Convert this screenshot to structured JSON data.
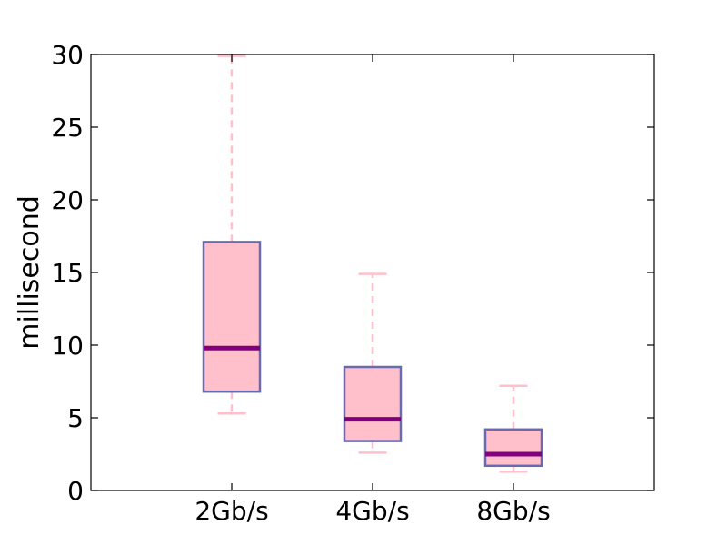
{
  "chart_data": {
    "type": "box",
    "title": "",
    "xlabel": "",
    "ylabel": "millisecond",
    "ylim": [
      0,
      30
    ],
    "yticks": [
      0,
      5,
      10,
      15,
      20,
      25,
      30
    ],
    "ytick_labels": [
      "0",
      "5",
      "10",
      "15",
      "20",
      "25",
      "30"
    ],
    "categories": [
      "2Gb/s",
      "4Gb/s",
      "8Gb/s"
    ],
    "boxes": [
      {
        "category": "2Gb/s",
        "whislo": 5.3,
        "q1": 6.8,
        "median": 9.8,
        "q3": 17.1,
        "whishi": 29.9
      },
      {
        "category": "4Gb/s",
        "whislo": 2.6,
        "q1": 3.4,
        "median": 4.9,
        "q3": 8.5,
        "whishi": 14.9
      },
      {
        "category": "8Gb/s",
        "whislo": 1.3,
        "q1": 1.7,
        "median": 2.5,
        "q3": 4.2,
        "whishi": 7.2
      }
    ],
    "grid": false,
    "legend": "none",
    "colors": {
      "box_fill": "#ffc0cb",
      "box_edge": "#6a6ab0",
      "median": "#800080",
      "whisker": "#ffc0cb",
      "axes": "#000000"
    }
  }
}
